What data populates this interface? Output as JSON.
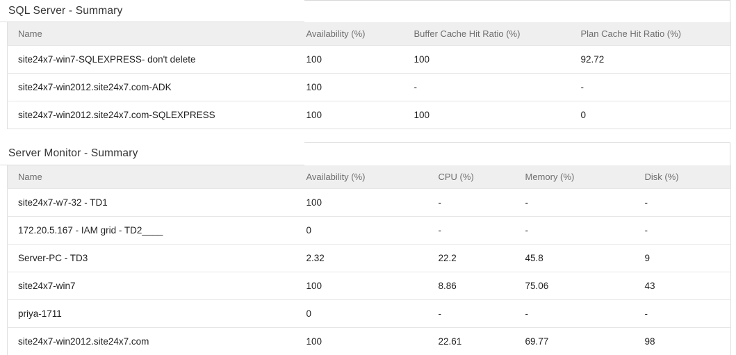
{
  "colors": {
    "header_row_bg": "#efefef",
    "header_text": "#6e6e6e",
    "body_text": "#1f1f1f",
    "title_text": "#333333",
    "border": "#e0e0e0"
  },
  "sql_summary": {
    "title": "SQL Server - Summary",
    "columns": [
      "Name",
      "Availability (%)",
      "Buffer Cache Hit Ratio (%)",
      "Plan Cache Hit Ratio (%)"
    ],
    "rows": [
      [
        "site24x7-win7-SQLEXPRESS- don't delete",
        "100",
        "100",
        "92.72"
      ],
      [
        "site24x7-win2012.site24x7.com-ADK",
        "100",
        "-",
        "-"
      ],
      [
        "site24x7-win2012.site24x7.com-SQLEXPRESS",
        "100",
        "100",
        "0"
      ]
    ]
  },
  "server_summary": {
    "title": "Server Monitor - Summary",
    "columns": [
      "Name",
      "Availability (%)",
      "CPU (%)",
      "Memory (%)",
      "Disk (%)"
    ],
    "rows": [
      [
        "site24x7-w7-32 - TD1",
        "100",
        "-",
        "-",
        "-"
      ],
      [
        "172.20.5.167 - IAM grid - TD2____",
        "0",
        "-",
        "-",
        "-"
      ],
      [
        "Server-PC - TD3",
        "2.32",
        "22.2",
        "45.8",
        "9"
      ],
      [
        "site24x7-win7",
        "100",
        "8.86",
        "75.06",
        "43"
      ],
      [
        "priya-1711",
        "0",
        "-",
        "-",
        "-"
      ],
      [
        "site24x7-win2012.site24x7.com",
        "100",
        "22.61",
        "69.77",
        "98"
      ]
    ]
  }
}
